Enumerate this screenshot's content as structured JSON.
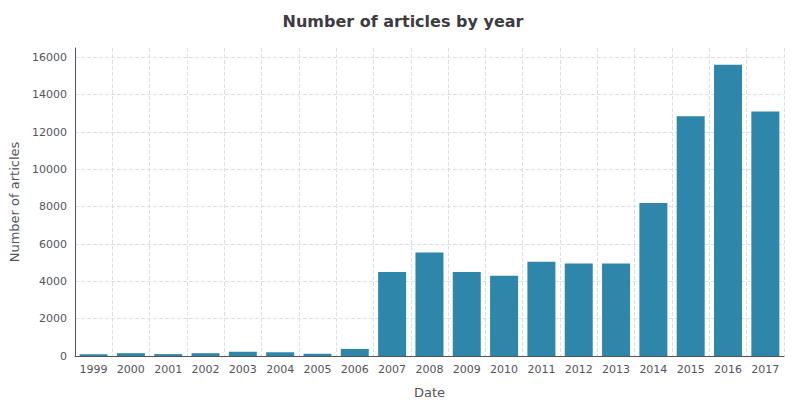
{
  "chart_data": {
    "type": "bar",
    "title": "Number of articles by year",
    "xlabel": "Date",
    "ylabel": "Number of articles",
    "categories": [
      "1999",
      "2000",
      "2001",
      "2002",
      "2003",
      "2004",
      "2005",
      "2006",
      "2007",
      "2008",
      "2009",
      "2010",
      "2011",
      "2012",
      "2013",
      "2014",
      "2015",
      "2016",
      "2017"
    ],
    "values": [
      100,
      150,
      100,
      150,
      230,
      200,
      120,
      380,
      4500,
      5550,
      4500,
      4300,
      5050,
      4950,
      4950,
      8200,
      12850,
      15600,
      13100
    ],
    "color": "#2e86ab",
    "ylim": [
      0,
      16500
    ],
    "yticks": [
      0,
      2000,
      4000,
      6000,
      8000,
      10000,
      12000,
      14000,
      16000
    ],
    "grid": true
  }
}
